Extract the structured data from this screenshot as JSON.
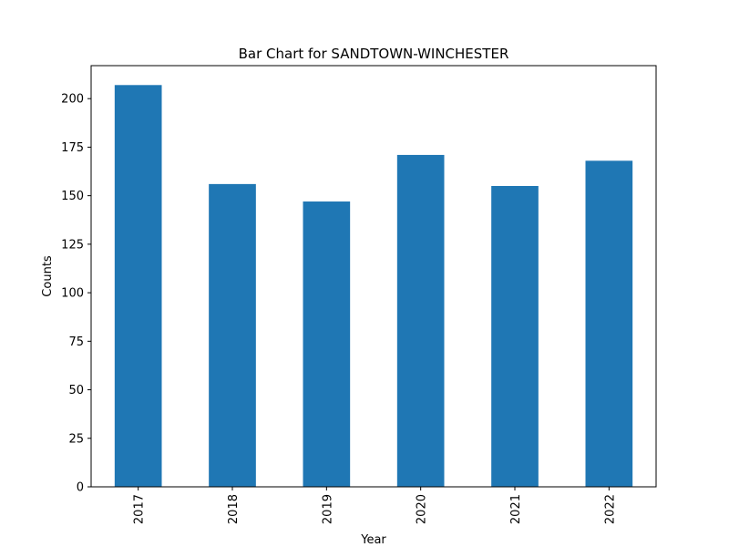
{
  "chart_data": {
    "type": "bar",
    "title": "Bar Chart for SANDTOWN-WINCHESTER",
    "xlabel": "Year",
    "ylabel": "Counts",
    "categories": [
      "2017",
      "2018",
      "2019",
      "2020",
      "2021",
      "2022"
    ],
    "values": [
      207,
      156,
      147,
      171,
      155,
      168
    ],
    "ylim": [
      0,
      217
    ],
    "yticks": [
      0,
      25,
      50,
      75,
      100,
      125,
      150,
      175,
      200
    ],
    "ytick_labels": [
      "0",
      "25",
      "50",
      "75",
      "100",
      "125",
      "150",
      "175",
      "200"
    ],
    "bar_color": "#1f77b4",
    "grid": false,
    "legend": "none",
    "xtick_rotation": "vertical"
  }
}
